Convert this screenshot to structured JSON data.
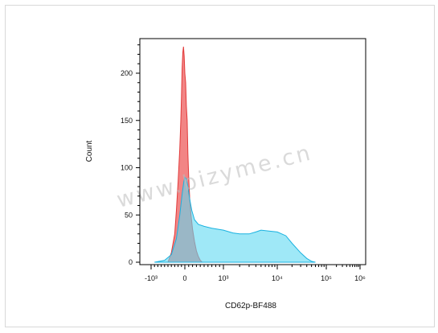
{
  "chart_data": {
    "type": "area",
    "title": "",
    "xlabel": "CD62p-BF488",
    "ylabel": "Count",
    "x_scale": "biexponential",
    "x_tick_labels": [
      "-10³",
      "0",
      "10³",
      "10⁴",
      "10⁵",
      "10⁶"
    ],
    "x_tick_values": [
      -1000,
      0,
      1000,
      10000,
      100000,
      1000000
    ],
    "xlim": [
      -1500,
      1000000
    ],
    "y_tick_labels": [
      "0",
      "50",
      "100",
      "150",
      "200"
    ],
    "y_tick_values": [
      0,
      50,
      100,
      150,
      200
    ],
    "ylim": [
      0,
      235
    ],
    "grid": false,
    "legend": "none",
    "series": [
      {
        "color": "#f07070",
        "stroke": "#e23a3a",
        "x": [
          -500,
          -400,
          -300,
          -250,
          -200,
          -150,
          -120,
          -100,
          -80,
          -60,
          -40,
          -20,
          0,
          20,
          40,
          60,
          80,
          100,
          130,
          160,
          200,
          250,
          300,
          350,
          400,
          450
        ],
        "y": [
          0,
          10,
          30,
          55,
          85,
          120,
          150,
          175,
          205,
          222,
          228,
          218,
          200,
          190,
          165,
          150,
          115,
          90,
          65,
          50,
          35,
          22,
          12,
          6,
          2,
          0
        ]
      },
      {
        "color": "#5fd8f2",
        "stroke": "#1ab2e0",
        "x": [
          -900,
          -600,
          -400,
          -250,
          -150,
          -80,
          -30,
          0,
          40,
          80,
          120,
          180,
          250,
          350,
          500,
          700,
          1000,
          1500,
          2000,
          3000,
          4000,
          5000,
          7000,
          10000,
          15000,
          20000,
          30000,
          40000,
          50000,
          60000
        ],
        "y": [
          0,
          2,
          8,
          25,
          50,
          72,
          85,
          90,
          88,
          80,
          68,
          55,
          45,
          40,
          38,
          36,
          34,
          31,
          30,
          30,
          32,
          34,
          33,
          32,
          28,
          20,
          10,
          4,
          1,
          0
        ]
      }
    ],
    "watermark": "www.bizyme.cn"
  }
}
